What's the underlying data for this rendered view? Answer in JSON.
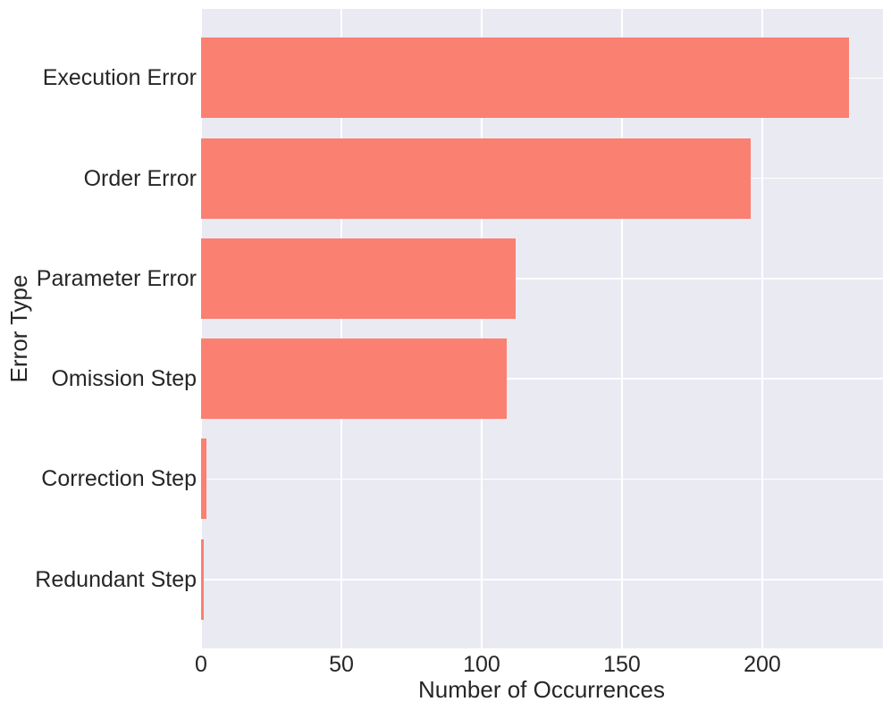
{
  "chart_data": {
    "type": "bar",
    "orientation": "horizontal",
    "title": "",
    "xlabel": "Number of Occurrences",
    "ylabel": "Error Type",
    "categories": [
      "Execution Error",
      "Order Error",
      "Parameter Error",
      "Omission Step",
      "Correction Step",
      "Redundant Step"
    ],
    "values": [
      231,
      196,
      112,
      109,
      2,
      1
    ],
    "xticks": [
      0,
      50,
      100,
      150,
      200
    ],
    "xlim": [
      0,
      243
    ],
    "grid": true,
    "legend": false,
    "bar_color": "#FA8072",
    "plot_bg_color": "#EAEAF2",
    "grid_color": "#FFFFFF",
    "text_color": "#262626"
  }
}
